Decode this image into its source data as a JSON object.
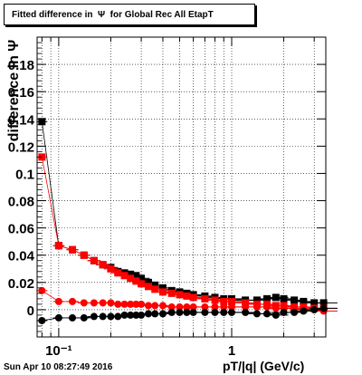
{
  "title": "Fitted difference in  Ψ  for Global Rec All EtapT",
  "timestamp": "Sun Apr 10 08:27:49 2016",
  "chart_data": {
    "type": "scatter",
    "title": "Fitted difference in  Ψ  for Global Rec All EtapT",
    "xlabel": "pT/|q| (GeV/c)",
    "ylabel": "difference in  Ψ",
    "xscale": "log",
    "xlim": [
      0.075,
      3.5
    ],
    "ylim": [
      -0.02,
      0.2
    ],
    "grid": true,
    "x_tick_labels": [
      "10⁻¹",
      "1"
    ],
    "y_ticks": [
      0,
      0.02,
      0.04,
      0.06,
      0.08,
      0.1,
      0.12,
      0.14,
      0.16,
      0.18
    ],
    "y_tick_labels": [
      "0",
      "0.02",
      "0.04",
      "0.06",
      "0.08",
      "0.1",
      "0.12",
      "0.14",
      "0.16",
      "0.18"
    ],
    "series": [
      {
        "color": "#000000",
        "marker": "square",
        "x": [
          0.08,
          0.1,
          0.12,
          0.14,
          0.16,
          0.18,
          0.2,
          0.22,
          0.24,
          0.26,
          0.28,
          0.3,
          0.33,
          0.36,
          0.4,
          0.45,
          0.5,
          0.55,
          0.6,
          0.7,
          0.8,
          0.9,
          1.0,
          1.2,
          1.4,
          1.6,
          1.8,
          2.0,
          2.3,
          2.6,
          3.0,
          3.4
        ],
        "y": [
          0.138,
          0.047,
          0.044,
          0.04,
          0.036,
          0.033,
          0.031,
          0.028,
          0.027,
          0.026,
          0.025,
          0.023,
          0.02,
          0.018,
          0.016,
          0.014,
          0.013,
          0.012,
          0.011,
          0.01,
          0.009,
          0.008,
          0.008,
          0.007,
          0.007,
          0.008,
          0.009,
          0.008,
          0.007,
          0.006,
          0.005,
          0.005
        ]
      },
      {
        "color": "#ff0000",
        "marker": "square",
        "x": [
          0.08,
          0.1,
          0.12,
          0.14,
          0.16,
          0.18,
          0.2,
          0.22,
          0.24,
          0.26,
          0.28,
          0.3,
          0.33,
          0.36,
          0.4,
          0.45,
          0.5,
          0.55,
          0.6,
          0.7,
          0.8,
          0.9,
          1.0,
          1.2,
          1.4,
          1.6,
          1.8,
          2.0,
          2.3,
          2.6,
          3.0,
          3.4
        ],
        "y": [
          0.112,
          0.047,
          0.044,
          0.04,
          0.036,
          0.033,
          0.03,
          0.027,
          0.025,
          0.023,
          0.021,
          0.019,
          0.017,
          0.015,
          0.013,
          0.012,
          0.011,
          0.01,
          0.009,
          0.008,
          0.007,
          0.006,
          0.006,
          0.005,
          0.004,
          0.004,
          0.003,
          0.003,
          0.002,
          0.002,
          0.001,
          0.001
        ]
      },
      {
        "color": "#ff0000",
        "marker": "circle",
        "x": [
          0.08,
          0.1,
          0.12,
          0.14,
          0.16,
          0.18,
          0.2,
          0.22,
          0.24,
          0.26,
          0.28,
          0.3,
          0.33,
          0.36,
          0.4,
          0.45,
          0.5,
          0.55,
          0.6,
          0.7,
          0.8,
          0.9,
          1.0,
          1.2,
          1.4,
          1.6,
          1.8,
          2.0,
          2.3,
          2.6,
          3.0,
          3.4
        ],
        "y": [
          0.014,
          0.006,
          0.006,
          0.005,
          0.005,
          0.005,
          0.005,
          0.004,
          0.004,
          0.004,
          0.004,
          0.004,
          0.003,
          0.003,
          0.003,
          0.002,
          0.002,
          0.002,
          0.002,
          0.002,
          0.002,
          0.002,
          0.002,
          0.002,
          0.002,
          0.002,
          0.001,
          0.001,
          0.001,
          0.0,
          0.0,
          -0.001
        ]
      },
      {
        "color": "#000000",
        "marker": "circle",
        "x": [
          0.08,
          0.1,
          0.12,
          0.14,
          0.16,
          0.18,
          0.2,
          0.22,
          0.24,
          0.26,
          0.28,
          0.3,
          0.33,
          0.36,
          0.4,
          0.45,
          0.5,
          0.55,
          0.6,
          0.7,
          0.8,
          0.9,
          1.0,
          1.2,
          1.4,
          1.6,
          1.8,
          2.0,
          2.3,
          2.6,
          3.0,
          3.4
        ],
        "y": [
          -0.008,
          -0.006,
          -0.006,
          -0.006,
          -0.005,
          -0.005,
          -0.005,
          -0.005,
          -0.004,
          -0.004,
          -0.004,
          -0.004,
          -0.003,
          -0.003,
          -0.003,
          -0.002,
          -0.002,
          -0.002,
          -0.002,
          -0.002,
          -0.002,
          -0.002,
          -0.002,
          -0.002,
          -0.003,
          -0.003,
          -0.004,
          -0.002,
          -0.002,
          -0.001,
          0.0,
          0.001
        ]
      }
    ]
  }
}
